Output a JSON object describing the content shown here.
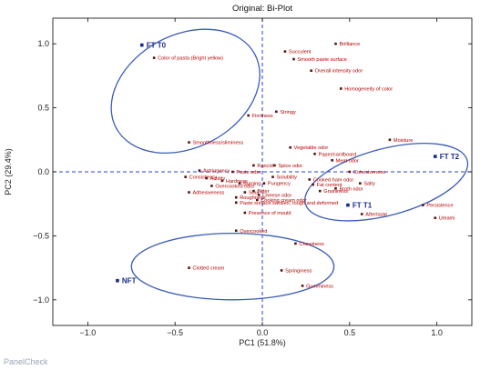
{
  "chart_data": {
    "type": "scatter",
    "title": "Original: Bi-Plot",
    "xlabel": "PC1 (51.8%)",
    "ylabel": "PC2 (29.4%)",
    "xlim": [
      -1.2,
      1.2
    ],
    "ylim": [
      -1.2,
      1.2
    ],
    "xticks": [
      -1.0,
      -0.5,
      0.0,
      0.5,
      1.0
    ],
    "yticks": [
      -1.0,
      -0.5,
      0.0,
      0.5,
      1.0
    ],
    "xtick_labels": [
      "−1.0",
      "−0.5",
      "0.0",
      "0.5",
      "1.0"
    ],
    "ytick_labels": [
      "−1.0",
      "−0.5",
      "0.0",
      "0.5",
      "1.0"
    ],
    "grid": false,
    "series": [
      {
        "name": "attributes",
        "color": "#b30000",
        "points": [
          {
            "label": "Color of pasta (Bright yellow)",
            "x": -0.62,
            "y": 0.89
          },
          {
            "label": "Succulent",
            "x": 0.13,
            "y": 0.94
          },
          {
            "label": "Brilliance",
            "x": 0.42,
            "y": 1.0
          },
          {
            "label": "Smooth paste surface",
            "x": 0.18,
            "y": 0.88
          },
          {
            "label": "Overall intensity odor",
            "x": 0.28,
            "y": 0.79
          },
          {
            "label": "Homogeneity of color",
            "x": 0.45,
            "y": 0.65
          },
          {
            "label": "Stringy",
            "x": 0.08,
            "y": 0.47
          },
          {
            "label": "Firmness",
            "x": -0.08,
            "y": 0.44
          },
          {
            "label": "Smoothness/sliminess",
            "x": -0.42,
            "y": 0.23
          },
          {
            "label": "Moisture",
            "x": 0.73,
            "y": 0.25
          },
          {
            "label": "Vegetable odor",
            "x": 0.16,
            "y": 0.19
          },
          {
            "label": "Paper/cardboard",
            "x": 0.3,
            "y": 0.14
          },
          {
            "label": "Meat odor",
            "x": 0.4,
            "y": 0.09
          },
          {
            "label": "Cohesiveness",
            "x": 0.5,
            "y": 0.0
          },
          {
            "label": "Cooked ham odor",
            "x": 0.27,
            "y": -0.06
          },
          {
            "label": "Fat content",
            "x": 0.29,
            "y": -0.1
          },
          {
            "label": "Salty",
            "x": 0.56,
            "y": -0.09
          },
          {
            "label": "Broth odor",
            "x": 0.42,
            "y": -0.13
          },
          {
            "label": "Graininess",
            "x": 0.33,
            "y": -0.15
          },
          {
            "label": "Aftertaste",
            "x": 0.57,
            "y": -0.33
          },
          {
            "label": "Persistence",
            "x": 0.92,
            "y": -0.26
          },
          {
            "label": "Umami",
            "x": 0.99,
            "y": -0.36
          },
          {
            "label": "Rancid",
            "x": -0.05,
            "y": 0.05
          },
          {
            "label": "Spice odor",
            "x": 0.07,
            "y": 0.05
          },
          {
            "label": "Astringency",
            "x": -0.36,
            "y": 0.01
          },
          {
            "label": "Paste odor",
            "x": -0.17,
            "y": 0.0
          },
          {
            "label": "Consistency",
            "x": -0.44,
            "y": -0.04
          },
          {
            "label": "Acidity",
            "x": -0.32,
            "y": -0.05
          },
          {
            "label": "Hardness",
            "x": -0.23,
            "y": -0.07
          },
          {
            "label": "Overcooked odor",
            "x": -0.29,
            "y": -0.11
          },
          {
            "label": "Adhesiveness",
            "x": -0.42,
            "y": -0.16
          },
          {
            "label": "Burning",
            "x": -0.13,
            "y": -0.09
          },
          {
            "label": "Solubility",
            "x": 0.06,
            "y": -0.04
          },
          {
            "label": "Pungency",
            "x": 0.01,
            "y": -0.09
          },
          {
            "label": "Sour",
            "x": -0.1,
            "y": -0.16
          },
          {
            "label": "Bitter",
            "x": -0.05,
            "y": -0.15
          },
          {
            "label": "Cheese odor",
            "x": -0.02,
            "y": -0.18
          },
          {
            "label": "Cooking cream odor",
            "x": -0.03,
            "y": -0.22
          },
          {
            "label": "Roughness",
            "x": -0.15,
            "y": -0.2
          },
          {
            "label": "Paste surface swollen, rough and deformed",
            "x": -0.15,
            "y": -0.24
          },
          {
            "label": "Presence of mould",
            "x": -0.1,
            "y": -0.32
          },
          {
            "label": "Overcooked",
            "x": -0.15,
            "y": -0.46
          },
          {
            "label": "Chewiness",
            "x": 0.19,
            "y": -0.56
          },
          {
            "label": "Clotted cream",
            "x": -0.42,
            "y": -0.75
          },
          {
            "label": "Springiness",
            "x": 0.11,
            "y": -0.77
          },
          {
            "label": "Gumminess",
            "x": 0.23,
            "y": -0.89
          }
        ]
      },
      {
        "name": "samples",
        "color": "#1a2a8c",
        "points": [
          {
            "label": "FT T0",
            "x": -0.69,
            "y": 0.99
          },
          {
            "label": "FT T1",
            "x": 0.49,
            "y": -0.26
          },
          {
            "label": "FT T2",
            "x": 0.99,
            "y": 0.12
          },
          {
            "label": "NFT",
            "x": -0.83,
            "y": -0.85
          }
        ]
      }
    ],
    "ellipses": [
      {
        "cx": -0.44,
        "cy": 0.63,
        "rx": 0.45,
        "ry": 0.44,
        "angle": -28
      },
      {
        "cx": 0.71,
        "cy": -0.08,
        "rx": 0.48,
        "ry": 0.26,
        "angle": -15
      },
      {
        "cx": -0.17,
        "cy": -0.74,
        "rx": 0.58,
        "ry": 0.26,
        "angle": 0
      }
    ]
  },
  "watermark": "PanelCheck"
}
